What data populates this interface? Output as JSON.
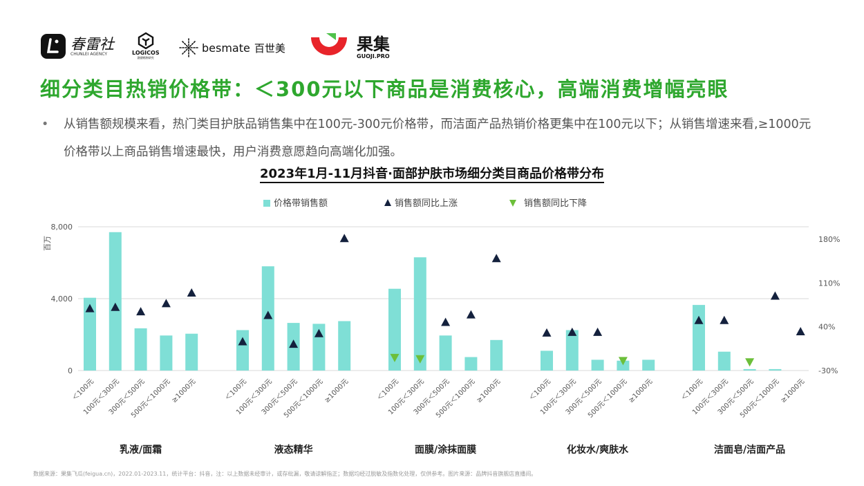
{
  "logos": {
    "chunlei_name": "春雷社",
    "chunlei_sub": "CHUNLEI AGENCY",
    "logicos_name": "LOGICOS",
    "logicos_sub": "路捷格物研究",
    "besmate_name": "besmate",
    "besmate_cn": "百世美",
    "guoji_name": "果集",
    "guoji_sub": "GUOJI.PRO"
  },
  "page_title": "细分类目热销价格带：＜300元以下商品是消费核心，高端消费增幅亮眼",
  "bullet_text": "从销售额规模来看，热门类目护肤品销售集中在100元-300元价格带，而洁面产品热销价格更集中在100元以下；从销售增速来看,≥1000元价格带以上商品销售增速最快，用户消费意愿趋向高端化加强。",
  "bullet_marker": "•",
  "footer": "数据来源：果集飞瓜(feigua.cn)，2022.01-2023.11，统计平台：抖音，注：以上数据未经审计，或存纰漏，敬请谅解指正；数据均经过脱敏及指数化处理，仅供参考。图片来源：品牌抖音旗舰店直播间。",
  "colors": {
    "title_green": "#2ea72e",
    "bar": "#7fdfd6",
    "up_marker": "#14213d",
    "down_marker": "#6cbf3a"
  },
  "chart_data": {
    "type": "bar",
    "title": "2023年1月-11月抖音·面部护肤市场细分类目商品价格带分布",
    "ylabel": "百万",
    "ylim": [
      0,
      8000
    ],
    "yticks": [
      "0",
      "4,000",
      "8,000"
    ],
    "y2lim": [
      -30,
      200
    ],
    "y2ticks": [
      "-30%",
      "40%",
      "110%",
      "180%"
    ],
    "legend": {
      "position": "top",
      "bar": "价格带销售额",
      "up": "销售额同比上涨",
      "down": "销售额同比下降"
    },
    "categories": [
      "＜100元",
      "100元＜300元",
      "300元＜500元",
      "500元＜1000元",
      "≥1000元"
    ],
    "groups": [
      {
        "name": "乳液/面霜",
        "sales": [
          4050,
          7700,
          2350,
          1950,
          2050
        ],
        "yoy": [
          70,
          72,
          65,
          78,
          95
        ],
        "direction": [
          "up",
          "up",
          "up",
          "up",
          "up"
        ]
      },
      {
        "name": "液态精华",
        "sales": [
          2250,
          5800,
          2650,
          2600,
          2750
        ],
        "yoy": [
          17,
          59,
          13,
          30,
          182
        ],
        "direction": [
          "up",
          "up",
          "up",
          "up",
          "up"
        ]
      },
      {
        "name": "面膜/涂抹面膜",
        "sales": [
          4550,
          6300,
          1950,
          750,
          1700
        ],
        "yoy": [
          -10,
          -12,
          48,
          60,
          150
        ],
        "direction": [
          "down",
          "down",
          "up",
          "up",
          "up"
        ]
      },
      {
        "name": "化妆水/爽肤水",
        "sales": [
          1100,
          2250,
          600,
          550,
          600
        ],
        "yoy": [
          31,
          32,
          32,
          -15,
          null
        ],
        "direction": [
          "up",
          "up",
          "up",
          "down",
          null
        ]
      },
      {
        "name": "洁面皂/洁面产品",
        "sales": [
          3650,
          1050,
          80,
          80,
          null
        ],
        "yoy": [
          51,
          51,
          -17,
          90,
          33
        ],
        "direction": [
          "up",
          "up",
          "down",
          "up",
          "up"
        ]
      }
    ]
  }
}
